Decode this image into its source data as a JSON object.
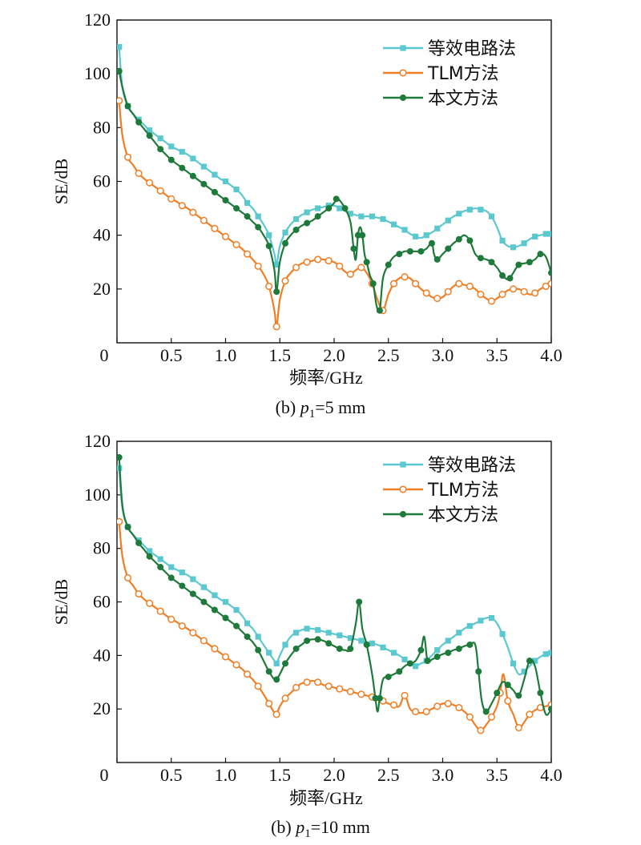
{
  "chart_data": [
    {
      "type": "line",
      "caption": {
        "prefix": "(b) ",
        "var": "p",
        "sub": "1",
        "suffix": "=5 mm"
      },
      "xlabel": "频率/GHz",
      "ylabel": "SE/dB",
      "xlim": [
        0,
        4.0
      ],
      "ylim": [
        0,
        120
      ],
      "xticks": [
        "0",
        "0.5",
        "1.0",
        "1.5",
        "2.0",
        "2.5",
        "3.0",
        "3.5",
        "4.0"
      ],
      "yticks": [
        "20",
        "40",
        "60",
        "80",
        "100",
        "120"
      ],
      "legend_position": "top-right",
      "series": [
        {
          "name": "等效电路法",
          "color": "#5bc8cf",
          "marker": "square",
          "x": [
            0.02,
            0.05,
            0.1,
            0.15,
            0.2,
            0.25,
            0.3,
            0.35,
            0.4,
            0.45,
            0.5,
            0.55,
            0.6,
            0.65,
            0.7,
            0.75,
            0.8,
            0.85,
            0.9,
            0.95,
            1.0,
            1.05,
            1.1,
            1.15,
            1.2,
            1.25,
            1.3,
            1.35,
            1.4,
            1.45,
            1.47,
            1.5,
            1.55,
            1.6,
            1.65,
            1.7,
            1.75,
            1.8,
            1.85,
            1.9,
            1.95,
            2.0,
            2.05,
            2.1,
            2.15,
            2.2,
            2.25,
            2.3,
            2.35,
            2.4,
            2.45,
            2.5,
            2.55,
            2.6,
            2.65,
            2.7,
            2.75,
            2.8,
            2.85,
            2.9,
            2.95,
            3.0,
            3.05,
            3.1,
            3.15,
            3.2,
            3.25,
            3.3,
            3.35,
            3.4,
            3.45,
            3.5,
            3.55,
            3.6,
            3.65,
            3.7,
            3.75,
            3.8,
            3.85,
            3.9,
            3.95,
            4.0
          ],
          "y": [
            110,
            95,
            88,
            85,
            83,
            81,
            79,
            77.5,
            76,
            74.5,
            73,
            72,
            71,
            70,
            68.5,
            67,
            65.5,
            64,
            62.5,
            61,
            60,
            58.5,
            57,
            55,
            52,
            50,
            47,
            44,
            40,
            33,
            29,
            36,
            41,
            44,
            46,
            47.5,
            48.5,
            49.5,
            50,
            50.5,
            51,
            51,
            50,
            49,
            48,
            47.5,
            47,
            47,
            47,
            46.5,
            46,
            45,
            44,
            43,
            42,
            40.5,
            39.5,
            39,
            40,
            41,
            42.5,
            44,
            45.5,
            47,
            48,
            49,
            49.5,
            50,
            49.5,
            49,
            47,
            43,
            38,
            36,
            35.5,
            36,
            37,
            38.5,
            39.5,
            40,
            40.5,
            40.5
          ]
        },
        {
          "name": "TLM方法",
          "color": "#f07e24",
          "marker": "circle",
          "x": [
            0.02,
            0.05,
            0.1,
            0.15,
            0.2,
            0.25,
            0.3,
            0.35,
            0.4,
            0.45,
            0.5,
            0.55,
            0.6,
            0.65,
            0.7,
            0.75,
            0.8,
            0.85,
            0.9,
            0.95,
            1.0,
            1.05,
            1.1,
            1.15,
            1.2,
            1.25,
            1.3,
            1.35,
            1.4,
            1.45,
            1.47,
            1.5,
            1.55,
            1.6,
            1.65,
            1.7,
            1.75,
            1.8,
            1.85,
            1.9,
            1.95,
            2.0,
            2.05,
            2.1,
            2.15,
            2.2,
            2.25,
            2.3,
            2.35,
            2.4,
            2.45,
            2.5,
            2.55,
            2.6,
            2.65,
            2.7,
            2.75,
            2.8,
            2.85,
            2.9,
            2.95,
            3.0,
            3.05,
            3.1,
            3.15,
            3.2,
            3.25,
            3.3,
            3.35,
            3.4,
            3.45,
            3.5,
            3.55,
            3.6,
            3.65,
            3.7,
            3.75,
            3.8,
            3.85,
            3.9,
            3.95,
            4.0
          ],
          "y": [
            90,
            77,
            69,
            66,
            63,
            61,
            59.5,
            58,
            56.5,
            55,
            53.5,
            52.5,
            51,
            50,
            48.5,
            47,
            45.5,
            44,
            42.5,
            41,
            39.5,
            38,
            36.5,
            35,
            33,
            31,
            28.5,
            25.5,
            21,
            12,
            6,
            16,
            23,
            26,
            28,
            29.5,
            30,
            30.5,
            31,
            31,
            30.5,
            30,
            28.5,
            26.5,
            25.5,
            27,
            28,
            26,
            22,
            16,
            12,
            18,
            22,
            24,
            24.5,
            24,
            22,
            20,
            18.5,
            17,
            16.5,
            17,
            19,
            21,
            22,
            21.5,
            21,
            20,
            18,
            16.5,
            15.5,
            16.5,
            18,
            19.5,
            20,
            20,
            19,
            18,
            18.5,
            20,
            21,
            22
          ]
        },
        {
          "name": "本文方法",
          "color": "#1e7a3a",
          "marker": "circle",
          "x": [
            0.02,
            0.05,
            0.1,
            0.15,
            0.2,
            0.25,
            0.3,
            0.35,
            0.4,
            0.45,
            0.5,
            0.55,
            0.6,
            0.65,
            0.7,
            0.75,
            0.8,
            0.85,
            0.9,
            0.95,
            1.0,
            1.05,
            1.1,
            1.15,
            1.2,
            1.25,
            1.3,
            1.35,
            1.4,
            1.45,
            1.47,
            1.5,
            1.55,
            1.6,
            1.65,
            1.7,
            1.75,
            1.8,
            1.85,
            1.9,
            1.95,
            2.0,
            2.02,
            2.05,
            2.1,
            2.15,
            2.18,
            2.2,
            2.22,
            2.24,
            2.26,
            2.28,
            2.3,
            2.33,
            2.36,
            2.39,
            2.42,
            2.45,
            2.5,
            2.55,
            2.6,
            2.65,
            2.7,
            2.75,
            2.8,
            2.85,
            2.9,
            2.92,
            2.95,
            3.0,
            3.05,
            3.1,
            3.15,
            3.2,
            3.25,
            3.3,
            3.35,
            3.4,
            3.45,
            3.5,
            3.55,
            3.6,
            3.62,
            3.65,
            3.7,
            3.75,
            3.8,
            3.85,
            3.9,
            3.95,
            4.0
          ],
          "y": [
            101,
            95,
            88,
            85,
            82,
            79.5,
            77,
            74.5,
            72,
            70,
            68,
            66.5,
            65,
            63.5,
            62,
            60.5,
            59,
            57.5,
            56,
            54.5,
            53,
            51.5,
            50,
            48.5,
            47,
            45,
            43,
            40,
            36,
            27,
            19,
            30,
            37,
            40,
            42,
            43.5,
            44.5,
            45.5,
            47,
            48.5,
            50,
            52,
            53.5,
            53,
            50,
            45,
            35,
            31,
            40,
            43,
            40,
            33,
            30,
            25,
            22,
            14,
            12,
            24,
            29,
            32,
            33,
            34,
            34,
            34,
            34,
            35,
            37,
            33,
            31,
            33,
            35,
            37,
            38.5,
            40,
            38,
            33,
            31.5,
            31,
            30,
            28,
            25,
            23.5,
            24,
            26,
            29,
            29.5,
            30,
            31,
            33,
            32,
            26
          ]
        }
      ]
    },
    {
      "type": "line",
      "caption": {
        "prefix": "(b) ",
        "var": "p",
        "sub": "1",
        "suffix": "=10 mm"
      },
      "xlabel": "频率/GHz",
      "ylabel": "SE/dB",
      "xlim": [
        0,
        4.0
      ],
      "ylim": [
        0,
        120
      ],
      "xticks": [
        "0",
        "0.5",
        "1.0",
        "1.5",
        "2.0",
        "2.5",
        "3.0",
        "3.5",
        "4.0"
      ],
      "yticks": [
        "20",
        "40",
        "60",
        "80",
        "100",
        "120"
      ],
      "legend_position": "top-right",
      "series": [
        {
          "name": "等效电路法",
          "color": "#5bc8cf",
          "marker": "square",
          "x": [
            0.02,
            0.05,
            0.1,
            0.15,
            0.2,
            0.25,
            0.3,
            0.35,
            0.4,
            0.45,
            0.5,
            0.55,
            0.6,
            0.65,
            0.7,
            0.75,
            0.8,
            0.85,
            0.9,
            0.95,
            1.0,
            1.05,
            1.1,
            1.15,
            1.2,
            1.25,
            1.3,
            1.35,
            1.4,
            1.45,
            1.47,
            1.5,
            1.55,
            1.6,
            1.65,
            1.7,
            1.75,
            1.8,
            1.85,
            1.9,
            1.95,
            2.0,
            2.05,
            2.1,
            2.15,
            2.2,
            2.25,
            2.3,
            2.35,
            2.4,
            2.45,
            2.5,
            2.55,
            2.6,
            2.65,
            2.7,
            2.75,
            2.8,
            2.85,
            2.9,
            2.95,
            3.0,
            3.05,
            3.1,
            3.15,
            3.2,
            3.25,
            3.3,
            3.35,
            3.4,
            3.45,
            3.5,
            3.55,
            3.6,
            3.65,
            3.7,
            3.75,
            3.8,
            3.85,
            3.9,
            3.95,
            4.0
          ],
          "y": [
            110,
            95,
            88,
            85,
            83,
            81,
            79,
            77.5,
            76,
            74.5,
            73,
            72,
            71,
            70,
            68.5,
            67,
            65.5,
            64,
            62.5,
            61,
            60,
            58.5,
            57,
            55,
            52,
            50,
            47,
            44,
            41,
            38,
            37,
            40,
            44,
            47,
            48.5,
            49.5,
            50,
            50,
            49.5,
            49,
            48.5,
            48,
            47.5,
            47,
            46.5,
            46,
            45.5,
            45,
            44.5,
            44,
            43,
            42,
            41,
            40,
            38.5,
            37,
            36,
            37,
            38,
            40,
            42,
            44,
            45.5,
            47,
            48.5,
            50,
            51,
            52,
            53,
            54,
            54,
            52,
            48,
            43,
            37,
            33,
            34,
            36,
            38,
            39.5,
            40.5,
            41
          ]
        },
        {
          "name": "TLM方法",
          "color": "#f07e24",
          "marker": "circle",
          "x": [
            0.02,
            0.05,
            0.1,
            0.15,
            0.2,
            0.25,
            0.3,
            0.35,
            0.4,
            0.45,
            0.5,
            0.55,
            0.6,
            0.65,
            0.7,
            0.75,
            0.8,
            0.85,
            0.9,
            0.95,
            1.0,
            1.05,
            1.1,
            1.15,
            1.2,
            1.25,
            1.3,
            1.35,
            1.4,
            1.45,
            1.47,
            1.5,
            1.55,
            1.6,
            1.65,
            1.7,
            1.75,
            1.8,
            1.85,
            1.9,
            1.95,
            2.0,
            2.05,
            2.1,
            2.15,
            2.2,
            2.25,
            2.3,
            2.35,
            2.4,
            2.45,
            2.5,
            2.55,
            2.6,
            2.65,
            2.7,
            2.75,
            2.8,
            2.85,
            2.9,
            2.95,
            3.0,
            3.05,
            3.1,
            3.15,
            3.2,
            3.25,
            3.3,
            3.35,
            3.4,
            3.45,
            3.5,
            3.53,
            3.56,
            3.6,
            3.65,
            3.7,
            3.75,
            3.8,
            3.85,
            3.9,
            3.95,
            4.0
          ],
          "y": [
            90,
            77,
            69,
            66,
            63,
            61,
            59.5,
            58,
            56.5,
            55,
            53.5,
            52.5,
            51,
            50,
            48.5,
            47,
            45.5,
            44,
            42.5,
            41,
            39.5,
            38,
            36.5,
            35,
            33,
            31,
            28.5,
            25.5,
            22,
            18.5,
            18,
            21,
            24,
            26,
            28,
            29.5,
            30,
            30.5,
            30,
            29,
            28.5,
            28,
            27.5,
            27,
            26.5,
            26,
            25.5,
            25,
            24.5,
            24,
            23,
            22,
            21.5,
            21,
            25,
            20,
            19,
            18.5,
            19,
            20,
            21,
            22,
            22,
            21.5,
            20.5,
            19,
            17,
            14,
            12,
            14,
            17,
            21,
            26,
            33,
            23,
            18,
            13,
            15,
            18,
            19.5,
            20.5,
            21,
            21.5
          ]
        },
        {
          "name": "本文方法",
          "color": "#1e7a3a",
          "marker": "circle",
          "x": [
            0.02,
            0.05,
            0.1,
            0.15,
            0.2,
            0.25,
            0.3,
            0.35,
            0.4,
            0.45,
            0.5,
            0.55,
            0.6,
            0.65,
            0.7,
            0.75,
            0.8,
            0.85,
            0.9,
            0.95,
            1.0,
            1.05,
            1.1,
            1.15,
            1.2,
            1.25,
            1.3,
            1.35,
            1.4,
            1.45,
            1.47,
            1.5,
            1.55,
            1.6,
            1.65,
            1.7,
            1.75,
            1.8,
            1.85,
            1.9,
            1.95,
            2.0,
            2.05,
            2.1,
            2.15,
            2.2,
            2.23,
            2.26,
            2.3,
            2.35,
            2.38,
            2.4,
            2.42,
            2.45,
            2.5,
            2.55,
            2.6,
            2.65,
            2.7,
            2.75,
            2.8,
            2.83,
            2.86,
            2.9,
            2.95,
            3.0,
            3.05,
            3.1,
            3.15,
            3.2,
            3.25,
            3.3,
            3.33,
            3.36,
            3.4,
            3.45,
            3.5,
            3.55,
            3.6,
            3.65,
            3.7,
            3.75,
            3.8,
            3.85,
            3.9,
            3.95,
            4.0
          ],
          "y": [
            114,
            96,
            88,
            85,
            82,
            79.5,
            77,
            75,
            73,
            71,
            69,
            67.5,
            66,
            64.5,
            63,
            61.5,
            60,
            58.5,
            57,
            55.5,
            54,
            52.5,
            51,
            49,
            47,
            45,
            42,
            38,
            34,
            31,
            31,
            33,
            37,
            40,
            42.5,
            44,
            45.5,
            46,
            46,
            45.5,
            44.5,
            43.5,
            42.5,
            42,
            42.5,
            52,
            60,
            50,
            44,
            33,
            24,
            19,
            24,
            31,
            32,
            33,
            34,
            36,
            37,
            38,
            42,
            47,
            38,
            38.5,
            39.5,
            40.5,
            41,
            42,
            42.5,
            43.5,
            44,
            44,
            34,
            23,
            19,
            22,
            26,
            30,
            29,
            27,
            25,
            31,
            38,
            36,
            26,
            18,
            20
          ]
        }
      ]
    }
  ]
}
